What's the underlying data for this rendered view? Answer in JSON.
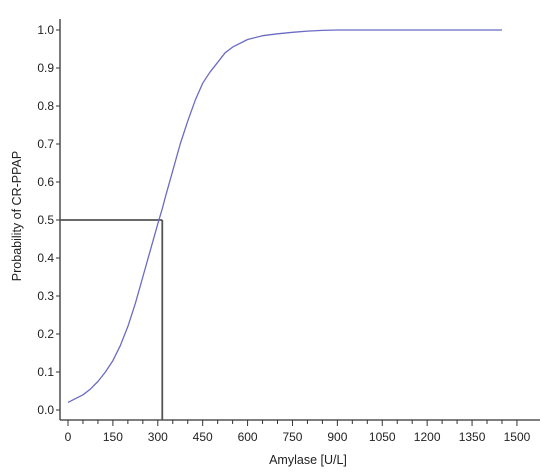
{
  "chart_data": {
    "type": "line",
    "title": "",
    "xlabel": "Amylase [U/L]",
    "ylabel": "Probability of CR-PPAP",
    "xlim": [
      0,
      1500
    ],
    "ylim": [
      0,
      1.0
    ],
    "x_ticks": [
      0,
      150,
      300,
      450,
      600,
      750,
      900,
      1050,
      1200,
      1350,
      1500
    ],
    "x_tick_labels": [
      "0",
      "150",
      "300",
      "450",
      "600",
      "750",
      "900",
      "1050",
      "1200",
      "1350",
      "1500"
    ],
    "y_ticks": [
      0.0,
      0.1,
      0.2,
      0.3,
      0.4,
      0.5,
      0.6,
      0.7,
      0.8,
      0.9,
      1.0
    ],
    "y_tick_labels": [
      "0.0",
      "0.1",
      "0.2",
      "0.3",
      "0.4",
      "0.5",
      "0.6",
      "0.7",
      "0.8",
      "0.9",
      "1.0"
    ],
    "grid": false,
    "legend": "none",
    "series": [
      {
        "color": "#6b6bc4",
        "x": [
          0,
          25,
          50,
          75,
          100,
          125,
          150,
          175,
          200,
          225,
          250,
          275,
          300,
          315,
          325,
          350,
          375,
          400,
          425,
          450,
          475,
          500,
          525,
          550,
          600,
          650,
          700,
          750,
          800,
          850,
          900,
          1000,
          1100,
          1200,
          1300,
          1400,
          1450
        ],
        "y": [
          0.02,
          0.03,
          0.04,
          0.055,
          0.075,
          0.1,
          0.13,
          0.17,
          0.22,
          0.28,
          0.35,
          0.42,
          0.49,
          0.53,
          0.56,
          0.63,
          0.7,
          0.76,
          0.815,
          0.86,
          0.89,
          0.915,
          0.94,
          0.955,
          0.975,
          0.985,
          0.99,
          0.994,
          0.997,
          0.999,
          1.0,
          1.0,
          1.0,
          1.0,
          1.0,
          1.0,
          1.0
        ]
      }
    ],
    "reference_lines": [
      {
        "x": 315,
        "y": 0.5,
        "color": "#555555"
      }
    ],
    "axis_color": "#333333"
  }
}
